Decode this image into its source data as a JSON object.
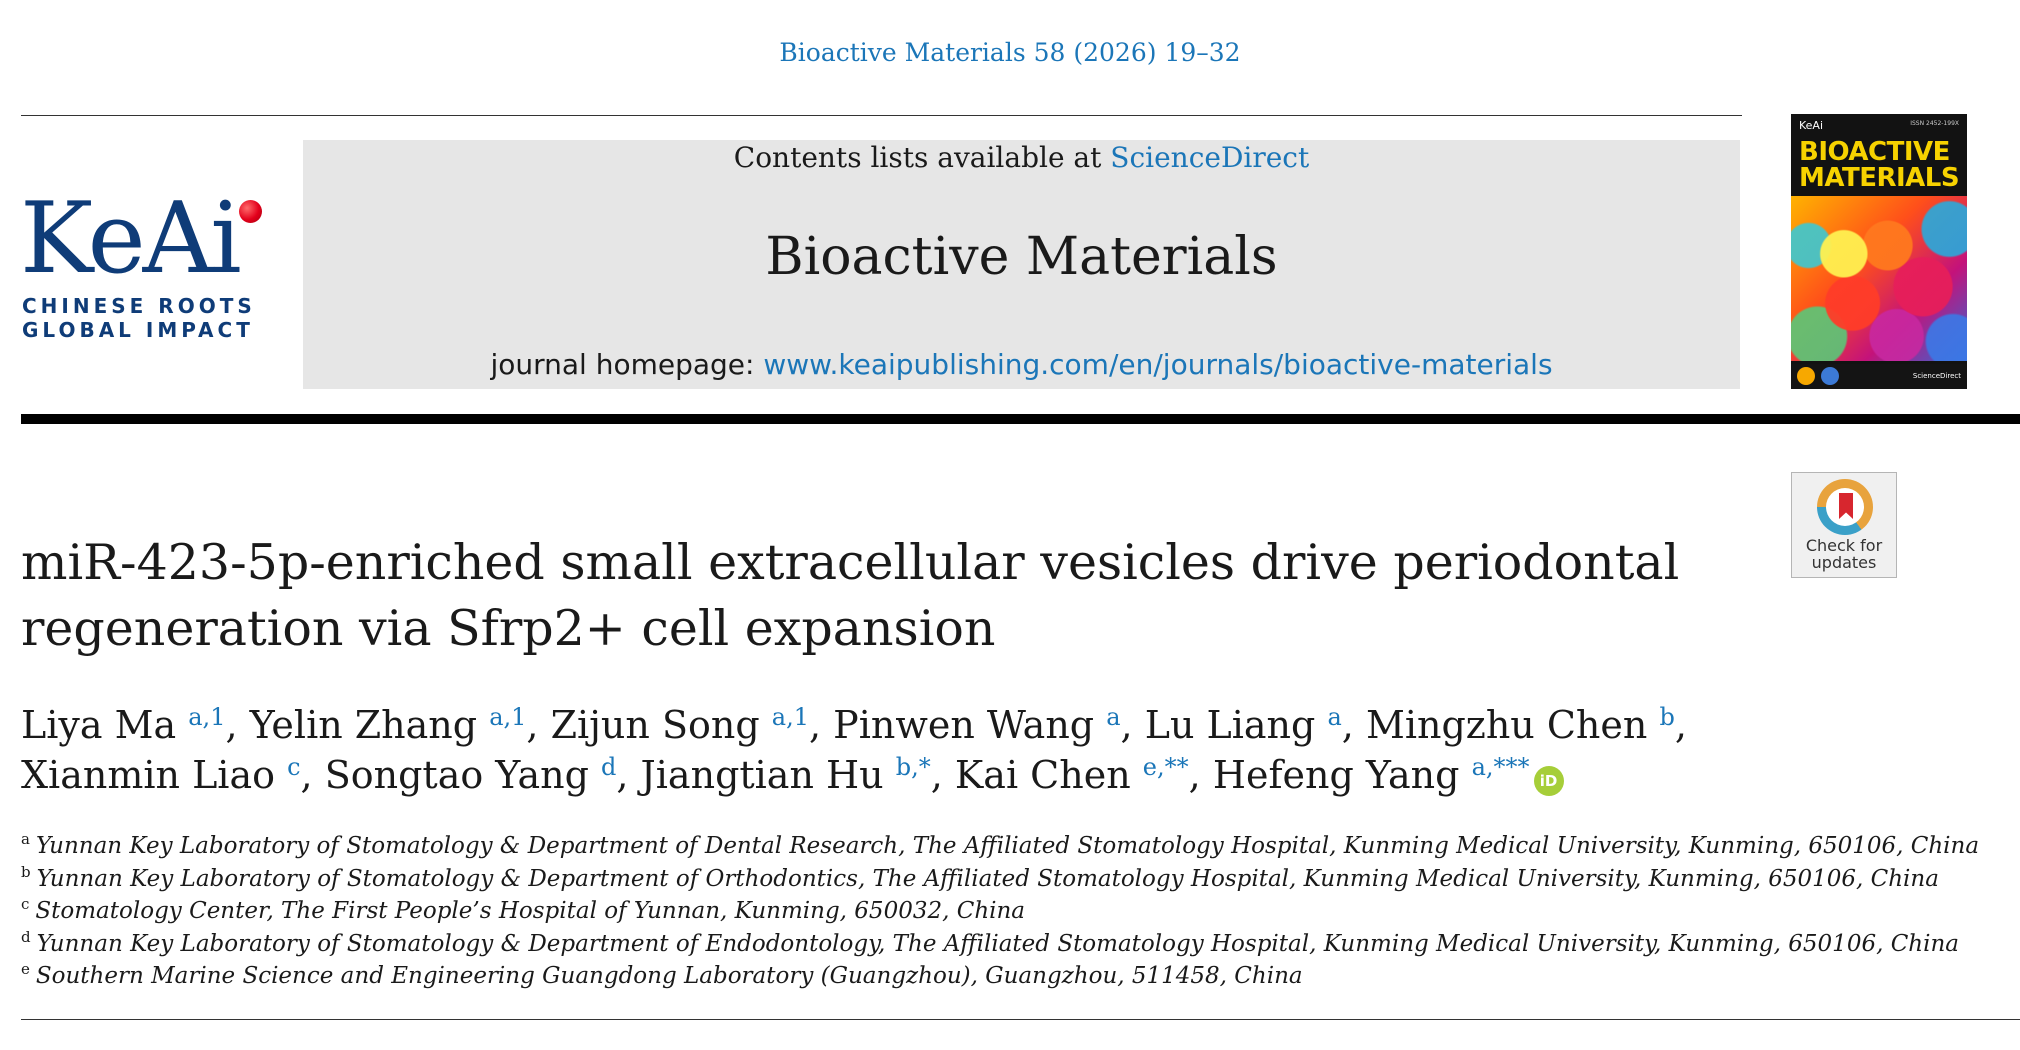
{
  "header": {
    "citation": "Bioactive Materials 58 (2026) 19–32",
    "contents_prefix": "Contents lists available at ",
    "contents_link": "ScienceDirect",
    "journal_name": "Bioactive Materials",
    "homepage_prefix": "journal homepage: ",
    "homepage_url": "www.keaipublishing.com/en/journals/bioactive-materials"
  },
  "publisher_logo": {
    "wordmark": "KeAi",
    "tagline_1": "CHINESE ROOTS",
    "tagline_2": "GLOBAL IMPACT",
    "dot_color": "#e3001b",
    "brand_color": "#0f3c78"
  },
  "cover": {
    "publisher": "KeAi",
    "issn": "ISSN 2452-199X",
    "title_line_1": "BIOACTIVE",
    "title_line_2": "MATERIALS",
    "footer_text": "ScienceDirect"
  },
  "check_updates": {
    "line_1": "Check for",
    "line_2": "updates"
  },
  "article": {
    "title_line_1": "miR-423-5p-enriched small extracellular vesicles drive periodontal",
    "title_line_2": "regeneration via Sfrp2+ cell expansion",
    "authors": [
      {
        "name": "Liya Ma",
        "sup": "a,1"
      },
      {
        "name": "Yelin Zhang",
        "sup": "a,1"
      },
      {
        "name": "Zijun Song",
        "sup": "a,1"
      },
      {
        "name": "Pinwen Wang",
        "sup": "a"
      },
      {
        "name": "Lu Liang",
        "sup": "a"
      },
      {
        "name": "Mingzhu Chen",
        "sup": "b"
      },
      {
        "name": "Xianmin Liao",
        "sup": "c"
      },
      {
        "name": "Songtao Yang",
        "sup": "d"
      },
      {
        "name": "Jiangtian Hu",
        "sup": "b,*"
      },
      {
        "name": "Kai Chen",
        "sup": "e,**"
      },
      {
        "name": "Hefeng Yang",
        "sup": "a,***"
      }
    ],
    "orcid_icon_label": "iD",
    "affiliations": [
      {
        "mark": "a",
        "text": "Yunnan Key Laboratory of Stomatology & Department of Dental Research, The Affiliated Stomatology Hospital, Kunming Medical University, Kunming, 650106, China"
      },
      {
        "mark": "b",
        "text": "Yunnan Key Laboratory of Stomatology & Department of Orthodontics, The Affiliated Stomatology Hospital, Kunming Medical University, Kunming, 650106, China"
      },
      {
        "mark": "c",
        "text": "Stomatology Center, The First People’s Hospital of Yunnan, Kunming, 650032, China"
      },
      {
        "mark": "d",
        "text": "Yunnan Key Laboratory of Stomatology & Department of Endodontology, The Affiliated Stomatology Hospital, Kunming Medical University, Kunming, 650106, China"
      },
      {
        "mark": "e",
        "text": "Southern Marine Science and Engineering Guangdong Laboratory (Guangzhou), Guangzhou, 511458, China"
      }
    ]
  },
  "colors": {
    "link": "#1b76b8",
    "journal_box_bg": "#e6e6e6",
    "orcid": "#a6ce39",
    "cover_title": "#f7d200"
  }
}
